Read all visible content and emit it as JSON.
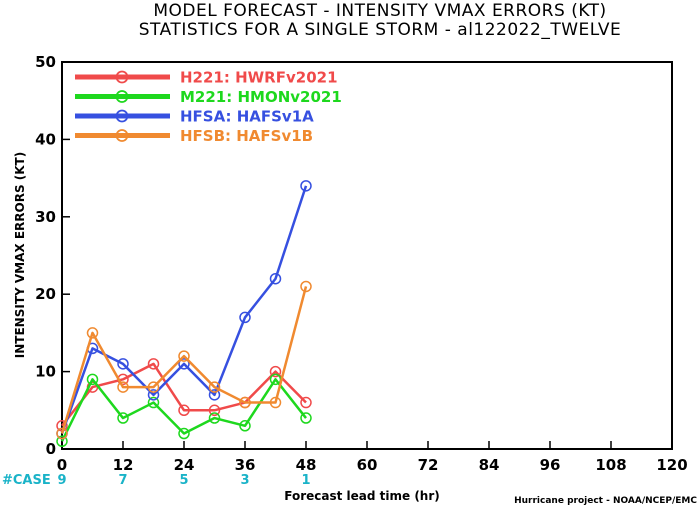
{
  "chart_data": {
    "type": "line",
    "title": "MODEL FORECAST - INTENSITY VMAX ERRORS (KT)",
    "subtitle": "STATISTICS FOR A SINGLE STORM - al122022_TWELVE",
    "xlabel": "Forecast lead time (hr)",
    "ylabel": "INTENSITY VMAX ERRORS (KT)",
    "xlim": [
      0,
      120
    ],
    "ylim": [
      0,
      50
    ],
    "xticks": [
      0,
      12,
      24,
      36,
      48,
      60,
      72,
      84,
      96,
      108,
      120
    ],
    "yticks": [
      0,
      10,
      20,
      30,
      40,
      50
    ],
    "legend_position": "top-left",
    "series": [
      {
        "code": "H221",
        "name": "HWRFv2021",
        "color": "#f04a4a",
        "x": [
          0,
          6,
          12,
          18,
          24,
          30,
          36,
          42,
          48
        ],
        "y": [
          3,
          8,
          9,
          11,
          5,
          5,
          6,
          10,
          6
        ]
      },
      {
        "code": "M221",
        "name": "HMONv2021",
        "color": "#1ed81e",
        "x": [
          0,
          6,
          12,
          18,
          24,
          30,
          36,
          42,
          48
        ],
        "y": [
          1,
          9,
          4,
          6,
          2,
          4,
          3,
          9,
          4
        ]
      },
      {
        "code": "HFSA",
        "name": "HAFSv1A",
        "color": "#3650e0",
        "x": [
          0,
          6,
          12,
          18,
          24,
          30,
          36,
          42,
          48
        ],
        "y": [
          2,
          13,
          11,
          7,
          11,
          7,
          17,
          22,
          34
        ]
      },
      {
        "code": "HFSB",
        "name": "HAFSv1B",
        "color": "#f08a30",
        "x": [
          0,
          6,
          12,
          18,
          24,
          30,
          36,
          42,
          48
        ],
        "y": [
          2,
          15,
          8,
          8,
          12,
          8,
          6,
          6,
          21
        ]
      }
    ],
    "cases": {
      "label": "#CASE",
      "x": [
        0,
        12,
        24,
        36,
        48
      ],
      "counts": [
        "9",
        "7",
        "5",
        "3",
        "1"
      ]
    }
  },
  "credit": "Hurricane project - NOAA/NCEP/EMC",
  "colors": {
    "case_text": "#1ab3c8",
    "axis": "#000000"
  }
}
